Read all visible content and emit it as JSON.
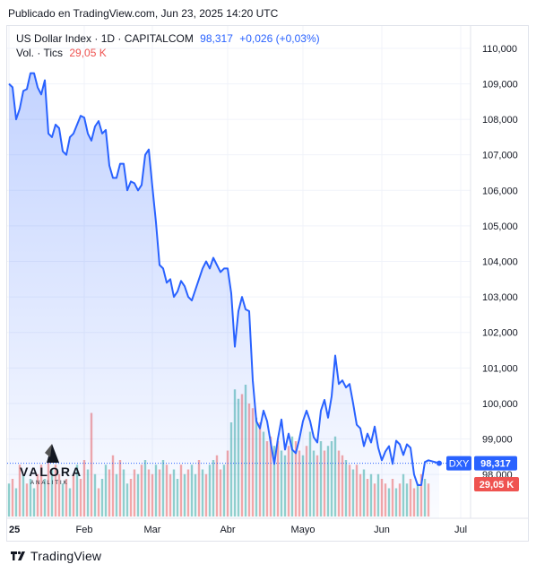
{
  "published": "Publicado en TradingView.com, Jun 23, 2025 14:20 UTC",
  "legend": {
    "symbol": "US Dollar Index · 1D · CAPITALCOM",
    "price": "98,317",
    "change": "+0,026 (+0,03%)",
    "vol_label": "Vol. · Tics",
    "vol_value": "29,05 K"
  },
  "watermark": {
    "name": "VALORA",
    "sub": "ANALITIK"
  },
  "footer": {
    "brand": "TradingView"
  },
  "colors": {
    "line": "#2962ff",
    "up_vol": "#26a69a",
    "down_vol": "#ef5350",
    "price_tag": "#2962ff",
    "vol_tag": "#ef5350"
  },
  "chart_data": {
    "type": "area",
    "ylim": [
      97.6,
      110.4
    ],
    "yticks": [
      "110,000",
      "109,000",
      "108,000",
      "107,000",
      "106,000",
      "105,000",
      "104,000",
      "103,000",
      "102,000",
      "101,000",
      "100,000",
      "99,000",
      "98,000"
    ],
    "yvalues": [
      110,
      109,
      108,
      107,
      106,
      105,
      104,
      103,
      102,
      101,
      100,
      99,
      98
    ],
    "xtick_labels": [
      "25",
      "Feb",
      "Mar",
      "Abr",
      "Mayo",
      "Jun",
      "Jul"
    ],
    "xtick_index": [
      0,
      21,
      40,
      61,
      82,
      104,
      126
    ],
    "n_points": 118,
    "series": [
      {
        "values": [
          109.0,
          108.9,
          108.0,
          108.3,
          108.8,
          108.85,
          109.3,
          109.3,
          108.9,
          108.7,
          109.1,
          107.6,
          107.5,
          107.85,
          107.75,
          107.1,
          107.0,
          107.5,
          107.6,
          107.85,
          108.1,
          108.05,
          107.6,
          107.4,
          107.8,
          107.95,
          107.6,
          107.7,
          106.7,
          106.35,
          106.35,
          106.75,
          106.75,
          106.0,
          106.25,
          106.2,
          106.0,
          106.15,
          107.0,
          107.15,
          106.1,
          105.1,
          103.9,
          103.8,
          103.4,
          103.5,
          103.0,
          103.15,
          103.45,
          103.3,
          103.0,
          102.9,
          103.2,
          103.5,
          103.8,
          104.0,
          103.8,
          104.1,
          103.9,
          103.7,
          103.8,
          103.8,
          103.1,
          101.6,
          102.6,
          103.0,
          102.65,
          102.6,
          100.65,
          99.5,
          99.3,
          99.8,
          99.5,
          98.9,
          98.3,
          99.0,
          99.55,
          98.7,
          99.15,
          98.7,
          98.6,
          99.0,
          99.5,
          99.8,
          99.5,
          99.05,
          98.9,
          99.8,
          100.1,
          99.6,
          100.2,
          101.35,
          100.55,
          100.65,
          100.45,
          100.55,
          100.0,
          99.4,
          99.3,
          98.8,
          99.15,
          98.9,
          99.35,
          98.75,
          98.4,
          98.65,
          98.8,
          98.3,
          98.95,
          98.85,
          98.55,
          98.85,
          98.75,
          98.0,
          97.7,
          97.7,
          98.35,
          98.4
        ]
      }
    ],
    "last_point": 98.317,
    "volume_values": [
      0.35,
      0.4,
      0.3,
      0.55,
      0.45,
      0.35,
      0.4,
      0.3,
      0.45,
      0.55,
      0.4,
      0.6,
      0.5,
      0.55,
      0.45,
      0.35,
      0.4,
      0.3,
      0.45,
      0.55,
      0.4,
      0.6,
      0.5,
      1.1,
      0.45,
      0.3,
      0.4,
      0.55,
      0.5,
      0.65,
      0.45,
      0.6,
      0.5,
      0.35,
      0.4,
      0.5,
      0.45,
      0.55,
      0.6,
      0.5,
      0.45,
      0.55,
      0.5,
      0.6,
      0.55,
      0.45,
      0.5,
      0.4,
      0.55,
      0.45,
      0.5,
      0.55,
      0.45,
      0.6,
      0.5,
      0.45,
      0.55,
      0.6,
      0.65,
      0.5,
      0.55,
      0.7,
      1.0,
      1.35,
      1.25,
      1.3,
      1.4,
      1.2,
      1.15,
      1.05,
      1.0,
      0.9,
      0.8,
      0.85,
      0.75,
      0.8,
      0.7,
      0.65,
      0.75,
      0.85,
      0.8,
      0.7,
      0.65,
      0.75,
      0.9,
      0.7,
      0.65,
      0.8,
      0.7,
      0.75,
      0.8,
      0.85,
      0.7,
      0.65,
      0.6,
      0.55,
      0.5,
      0.55,
      0.45,
      0.5,
      0.4,
      0.45,
      0.35,
      0.45,
      0.4,
      0.35,
      0.3,
      0.4,
      0.3,
      0.35,
      0.45,
      0.35,
      0.4,
      0.3,
      0.35,
      0.45,
      0.4,
      0.35
    ],
    "volume_up": [
      1,
      0,
      1,
      0,
      1,
      0,
      1,
      1,
      0,
      0,
      1,
      0,
      1,
      0,
      0,
      1,
      0,
      1,
      0,
      1,
      0,
      0,
      1,
      0,
      1,
      0,
      1,
      1,
      0,
      0,
      1,
      0,
      1,
      1,
      0,
      0,
      1,
      0,
      1,
      0,
      0,
      1,
      0,
      1,
      0,
      0,
      1,
      1,
      0,
      1,
      0,
      1,
      1,
      0,
      1,
      0,
      1,
      1,
      0,
      0,
      1,
      0,
      1,
      1,
      1,
      0,
      1,
      0,
      0,
      1,
      0,
      1,
      0,
      0,
      1,
      0,
      1,
      1,
      0,
      1,
      0,
      0,
      1,
      0,
      1,
      1,
      0,
      1,
      0,
      1,
      1,
      1,
      0,
      0,
      1,
      0,
      1,
      0,
      0,
      1,
      0,
      1,
      0,
      1,
      0,
      0,
      1,
      0,
      1,
      0,
      1,
      1,
      0,
      0,
      1,
      0,
      1,
      0
    ],
    "price_tag": {
      "symbol": "DXY",
      "value": "98,317"
    },
    "volume_tag": "29,05 K"
  }
}
